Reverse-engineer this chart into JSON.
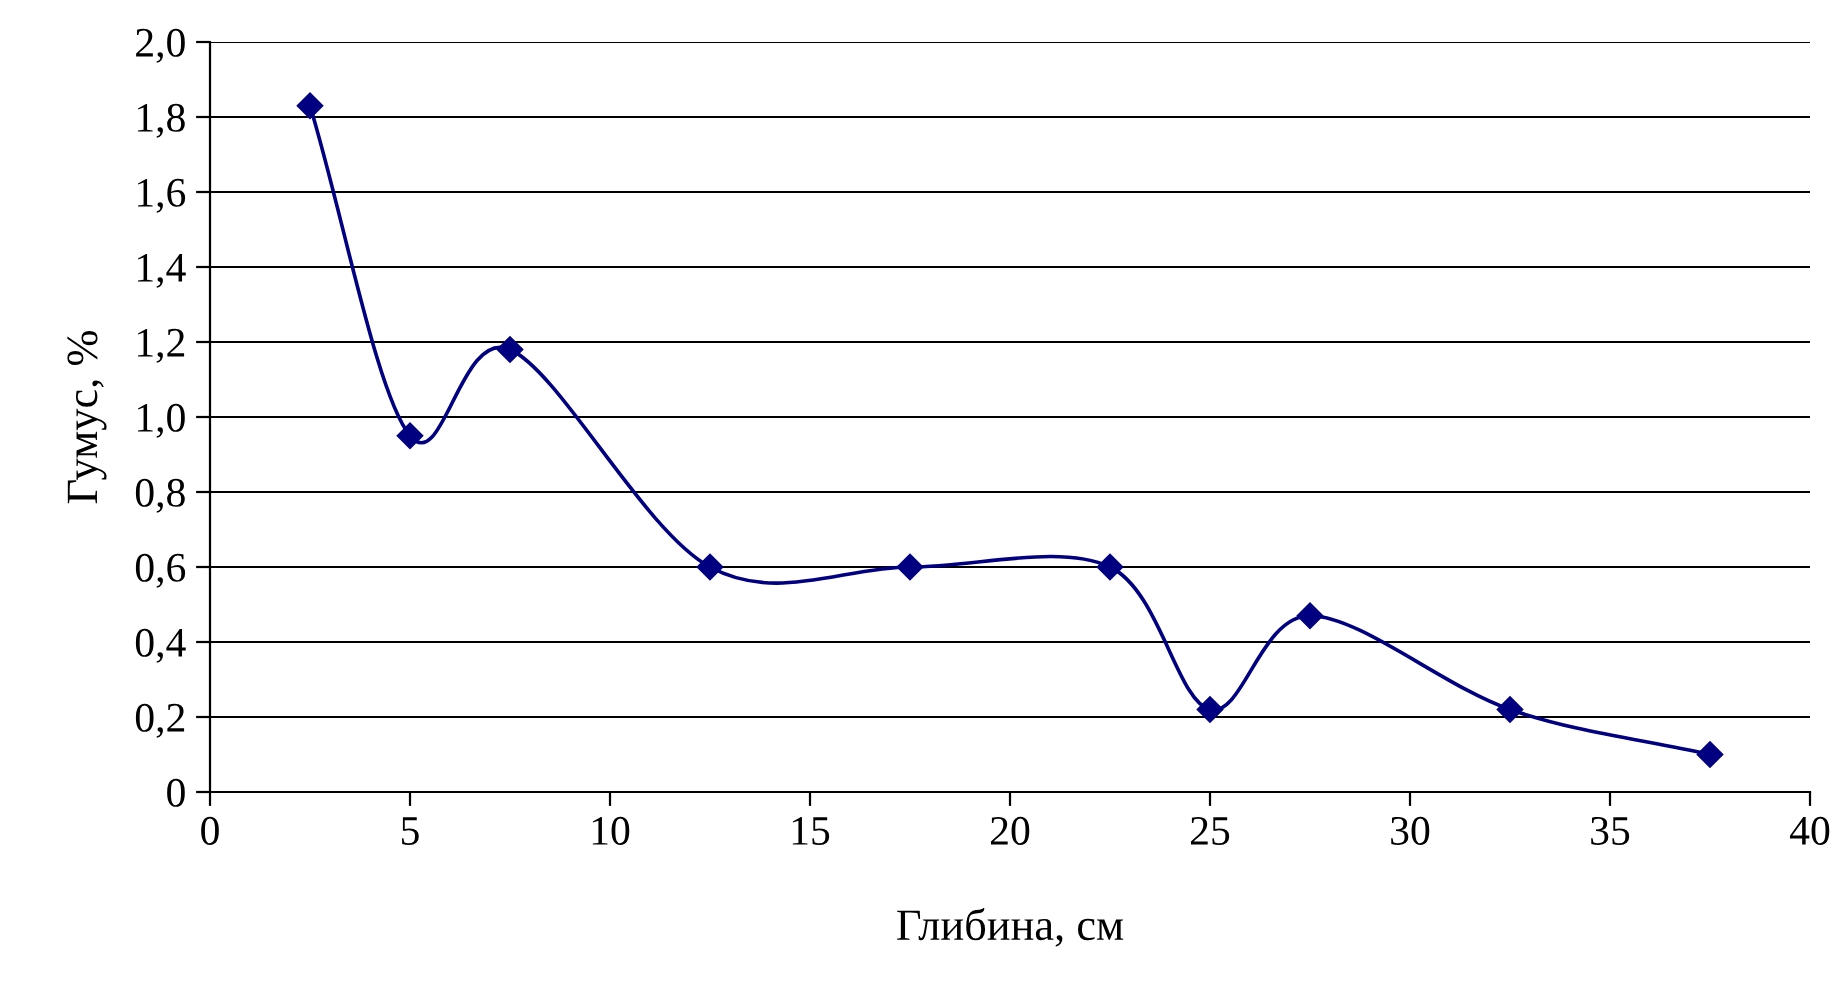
{
  "chart_data": {
    "type": "line",
    "xlabel": "Глибина, см",
    "ylabel": "Гумус, %",
    "x": [
      2.5,
      5,
      7.5,
      12.5,
      17.5,
      22.5,
      25,
      27.5,
      32.5,
      37.5
    ],
    "series": [
      {
        "color": "#000080",
        "values": [
          1.83,
          0.95,
          1.18,
          0.6,
          0.6,
          0.6,
          0.22,
          0.47,
          0.22,
          0.1
        ]
      }
    ],
    "marker": "diamond",
    "line_style": "solid",
    "grid": "y",
    "legend": false,
    "xlim": [
      0,
      40
    ],
    "xticks": [
      0,
      5,
      10,
      15,
      20,
      25,
      30,
      35,
      40
    ],
    "ylim": [
      0,
      2.0
    ],
    "yticks": [
      0,
      {
        "value": 0.2,
        "label": "0,2"
      },
      {
        "value": 0.4,
        "label": "0,4"
      },
      {
        "value": 0.6,
        "label": "0,6"
      },
      {
        "value": 0.8,
        "label": "0,8"
      },
      {
        "value": 1.0,
        "label": "1,0"
      },
      {
        "value": 1.2,
        "label": "1,2"
      },
      {
        "value": 1.4,
        "label": "1,4"
      },
      {
        "value": 1.6,
        "label": "1,6"
      },
      {
        "value": 1.8,
        "label": "1,8"
      },
      {
        "value": 2.0,
        "label": "2,0"
      }
    ]
  }
}
